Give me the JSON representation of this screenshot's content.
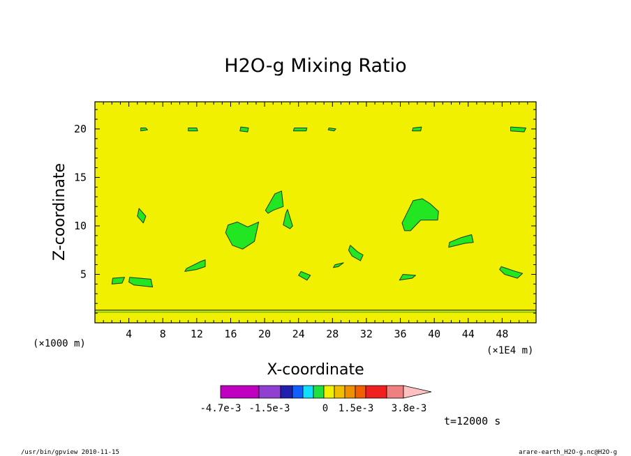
{
  "chart_data": {
    "type": "heatmap",
    "title": "H2O-g Mixing Ratio",
    "xlabel": "X-coordinate",
    "ylabel": "Z-coordinate",
    "x_unit": "(×1E4 m)",
    "y_unit": "(×1000 m)",
    "xlim": [
      0,
      52
    ],
    "ylim": [
      0,
      22.8
    ],
    "xticks": [
      4,
      8,
      12,
      16,
      20,
      24,
      28,
      32,
      36,
      40,
      44,
      48
    ],
    "yticks": [
      5,
      10,
      15,
      20
    ],
    "background_color": "#f0f000",
    "patch_color": "#22e622",
    "colorbar": {
      "colors": [
        "#c000c0",
        "#9040d0",
        "#2020b0",
        "#1060ff",
        "#10e0ff",
        "#20e040",
        "#f0f000",
        "#f0c000",
        "#f09000",
        "#f06000",
        "#f02020",
        "#f08080",
        "#ffc0c0"
      ],
      "labels": [
        "-4.7e-3",
        "-1.5e-3",
        "0",
        "1.5e-3",
        "3.8e-3"
      ]
    },
    "time_label": "t=12000 s",
    "patches": [
      [
        [
          5.4,
          20.1
        ],
        [
          6.0,
          20.1
        ],
        [
          6.2,
          19.9
        ],
        [
          5.4,
          19.8
        ]
      ],
      [
        [
          11.0,
          20.1
        ],
        [
          12.0,
          20.1
        ],
        [
          12.1,
          19.8
        ],
        [
          11.0,
          19.8
        ]
      ],
      [
        [
          17.2,
          20.2
        ],
        [
          18.1,
          20.1
        ],
        [
          18.0,
          19.7
        ],
        [
          17.1,
          19.8
        ]
      ],
      [
        [
          23.5,
          20.1
        ],
        [
          25.0,
          20.1
        ],
        [
          24.9,
          19.8
        ],
        [
          23.4,
          19.8
        ]
      ],
      [
        [
          27.6,
          20.1
        ],
        [
          28.4,
          20.0
        ],
        [
          28.2,
          19.8
        ],
        [
          27.5,
          19.9
        ]
      ],
      [
        [
          37.5,
          20.1
        ],
        [
          38.5,
          20.2
        ],
        [
          38.4,
          19.8
        ],
        [
          37.4,
          19.8
        ]
      ],
      [
        [
          49.0,
          20.2
        ],
        [
          50.8,
          20.1
        ],
        [
          50.6,
          19.7
        ],
        [
          49.0,
          19.8
        ]
      ],
      [
        [
          2.1,
          4.6
        ],
        [
          3.5,
          4.7
        ],
        [
          3.2,
          4.1
        ],
        [
          2.0,
          4.0
        ]
      ],
      [
        [
          4.1,
          4.7
        ],
        [
          6.6,
          4.5
        ],
        [
          6.8,
          3.7
        ],
        [
          4.6,
          3.9
        ],
        [
          4.0,
          4.2
        ]
      ],
      [
        [
          10.8,
          5.6
        ],
        [
          12.4,
          6.3
        ],
        [
          13.0,
          6.5
        ],
        [
          13.0,
          5.8
        ],
        [
          12.0,
          5.5
        ],
        [
          10.6,
          5.3
        ]
      ],
      [
        [
          15.7,
          10.1
        ],
        [
          16.8,
          10.4
        ],
        [
          18.0,
          9.9
        ],
        [
          19.3,
          10.4
        ],
        [
          18.8,
          8.4
        ],
        [
          17.4,
          7.6
        ],
        [
          16.2,
          8.0
        ],
        [
          15.4,
          9.3
        ]
      ],
      [
        [
          20.1,
          11.6
        ],
        [
          21.2,
          13.3
        ],
        [
          22.0,
          13.6
        ],
        [
          22.2,
          12.0
        ],
        [
          21.0,
          11.6
        ],
        [
          20.4,
          11.3
        ]
      ],
      [
        [
          22.5,
          11.3
        ],
        [
          22.7,
          11.7
        ],
        [
          23.3,
          10.0
        ],
        [
          23.0,
          9.7
        ],
        [
          22.2,
          10.1
        ]
      ],
      [
        [
          24.3,
          5.3
        ],
        [
          25.4,
          4.9
        ],
        [
          25.0,
          4.4
        ],
        [
          24.0,
          4.9
        ]
      ],
      [
        [
          30.1,
          8.0
        ],
        [
          31.0,
          7.3
        ],
        [
          31.6,
          7.0
        ],
        [
          31.3,
          6.4
        ],
        [
          30.3,
          6.9
        ],
        [
          29.9,
          7.5
        ]
      ],
      [
        [
          36.2,
          10.3
        ],
        [
          37.5,
          12.6
        ],
        [
          38.6,
          12.8
        ],
        [
          39.5,
          12.3
        ],
        [
          40.5,
          11.5
        ],
        [
          40.4,
          10.6
        ],
        [
          38.4,
          10.6
        ],
        [
          37.2,
          9.5
        ],
        [
          36.5,
          9.5
        ]
      ],
      [
        [
          41.8,
          8.3
        ],
        [
          43.2,
          8.8
        ],
        [
          44.4,
          9.1
        ],
        [
          44.6,
          8.3
        ],
        [
          43.6,
          8.2
        ],
        [
          41.7,
          7.8
        ]
      ],
      [
        [
          47.9,
          5.8
        ],
        [
          49.6,
          5.3
        ],
        [
          50.4,
          5.1
        ],
        [
          49.8,
          4.6
        ],
        [
          48.3,
          5.0
        ],
        [
          47.7,
          5.5
        ]
      ],
      [
        [
          36.3,
          5.0
        ],
        [
          37.8,
          4.9
        ],
        [
          37.4,
          4.6
        ],
        [
          35.9,
          4.4
        ]
      ],
      [
        [
          5.2,
          11.8
        ],
        [
          6.0,
          11.0
        ],
        [
          5.7,
          10.3
        ],
        [
          5.0,
          11.0
        ]
      ],
      [
        [
          28.3,
          6.0
        ],
        [
          29.3,
          6.2
        ],
        [
          28.7,
          5.8
        ],
        [
          28.1,
          5.7
        ]
      ]
    ],
    "annotations": {
      "cmd": "/usr/bin/gpview  2010-11-15",
      "source": "arare-earth_H2O-g.nc@H2O-g"
    }
  }
}
